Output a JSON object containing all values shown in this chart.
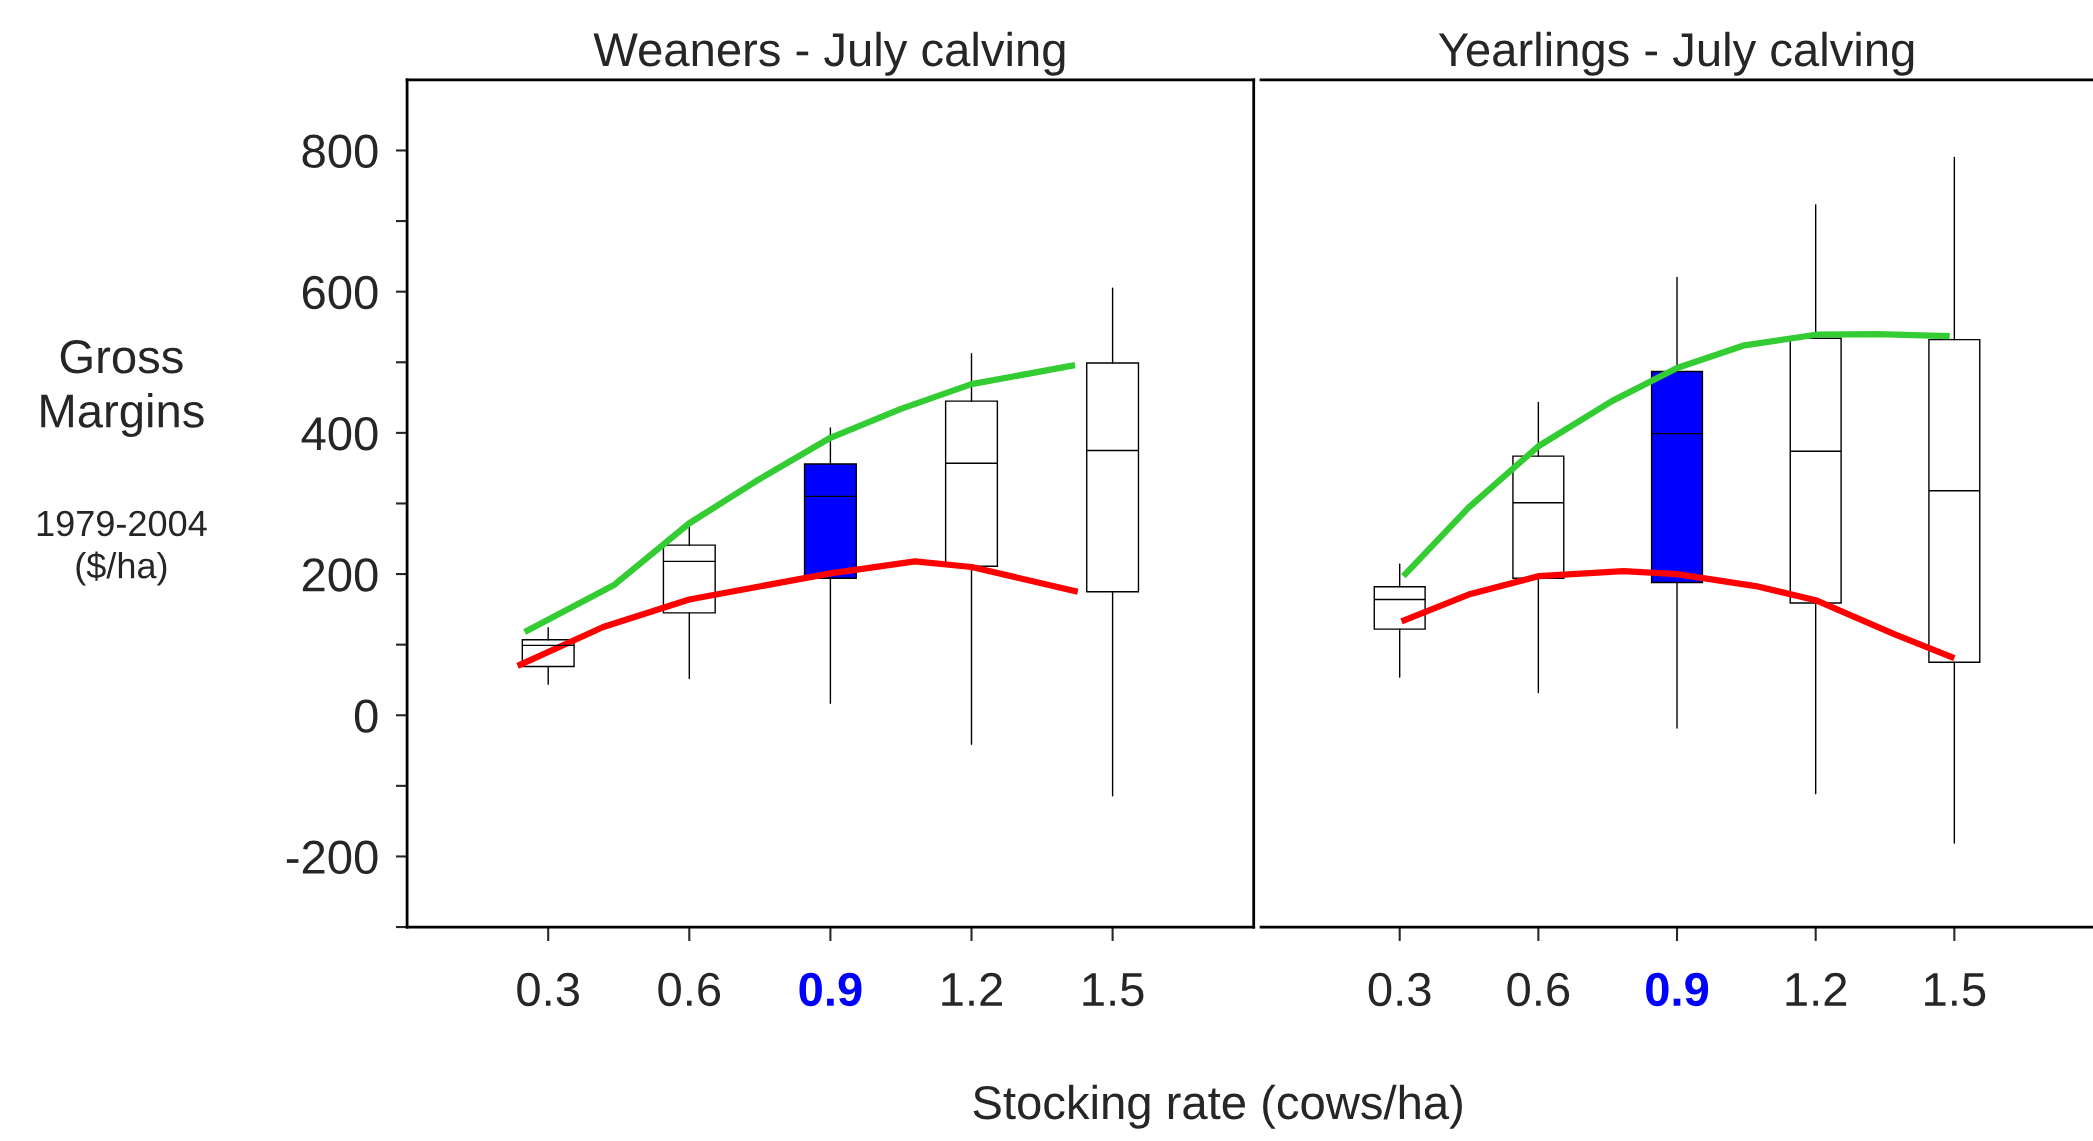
{
  "chart_data": [
    {
      "type": "box",
      "title": "Weaners - July calving",
      "ylabel": "Gross\nMargins",
      "xlabel": "Stocking rate (cows/ha)",
      "annotations": [
        "1979-2004\n($/ha)"
      ],
      "x": [
        0.3,
        0.6,
        0.9,
        1.2,
        1.5
      ],
      "xlim": [
        0,
        1.8
      ],
      "xticks": [
        0.3,
        0.6,
        0.9,
        1.2,
        1.5
      ],
      "ylim": [
        -300,
        900
      ],
      "yticks": [
        {
          "value": -300,
          "label": null
        },
        -200,
        {
          "value": -100,
          "label": null
        },
        0,
        {
          "value": 100,
          "label": null
        },
        200,
        {
          "value": 300,
          "label": null
        },
        400,
        {
          "value": 500,
          "label": null
        },
        600,
        {
          "value": 700,
          "label": null
        },
        800
      ],
      "colors": [
        "#ffffff",
        "#ffffff",
        "#0000ff",
        "#ffffff",
        "#ffffff"
      ],
      "boxes": [
        {
          "low": 44,
          "q1": 69,
          "median": 99,
          "q3": 107,
          "high": 124
        },
        {
          "low": 52,
          "q1": 145,
          "median": 218,
          "q3": 241,
          "high": 268
        },
        {
          "low": 17,
          "q1": 194,
          "median": 310,
          "q3": 356,
          "high": 407
        },
        {
          "low": -41,
          "q1": 211,
          "median": 357,
          "q3": 445,
          "high": 512
        },
        {
          "low": -114,
          "q1": 175,
          "median": 375,
          "q3": 499,
          "high": 605
        }
      ],
      "series": [
        {
          "type": "line",
          "color": "#33cc33",
          "x": [
            0.25,
            0.441,
            0.6,
            0.748,
            0.9,
            1.05,
            1.2,
            1.42
          ],
          "values": [
            118,
            185,
            272,
            334,
            393,
            434,
            469,
            496
          ]
        },
        {
          "type": "line",
          "color": "#ff0000",
          "x": [
            0.235,
            0.417,
            0.6,
            0.9,
            1.08,
            1.2,
            1.426
          ],
          "values": [
            70,
            125,
            164,
            201,
            218,
            210,
            175
          ]
        }
      ],
      "grid": false,
      "legend": false
    },
    {
      "type": "box",
      "title": "Yearlings - July calving",
      "x": [
        0.3,
        0.6,
        0.9,
        1.2,
        1.5
      ],
      "xlim": [
        0,
        1.8
      ],
      "xticks": [
        0.3,
        0.6,
        0.9,
        1.2,
        1.5
      ],
      "ylim": [
        -300,
        900
      ],
      "tick_labels": "x",
      "colors": [
        "#ffffff",
        "#ffffff",
        "#0000ff",
        "#ffffff",
        "#ffffff"
      ],
      "boxes": [
        {
          "low": 54,
          "q1": 122,
          "median": 164,
          "q3": 182,
          "high": 214
        },
        {
          "low": 32,
          "q1": 194,
          "median": 301,
          "q3": 367,
          "high": 443
        },
        {
          "low": -18,
          "q1": 188,
          "median": 399,
          "q3": 487,
          "high": 620
        },
        {
          "low": -111,
          "q1": 159,
          "median": 374,
          "q3": 534,
          "high": 723
        },
        {
          "low": -181,
          "q1": 75,
          "median": 318,
          "q3": 532,
          "high": 790
        }
      ],
      "series": [
        {
          "type": "line",
          "color": "#33cc33",
          "x": [
            0.308,
            0.449,
            0.6,
            0.759,
            0.9,
            1.046,
            1.2,
            1.333,
            1.49
          ],
          "values": [
            197,
            294,
            381,
            445,
            492,
            524,
            539,
            540,
            537
          ]
        },
        {
          "type": "line",
          "color": "#ff0000",
          "x": [
            0.304,
            0.449,
            0.6,
            0.784,
            0.9,
            1.07,
            1.2,
            1.37,
            1.5
          ],
          "values": [
            133,
            171,
            197,
            204,
            200,
            183,
            163,
            115,
            81
          ]
        }
      ],
      "grid": false,
      "legend": false
    }
  ]
}
